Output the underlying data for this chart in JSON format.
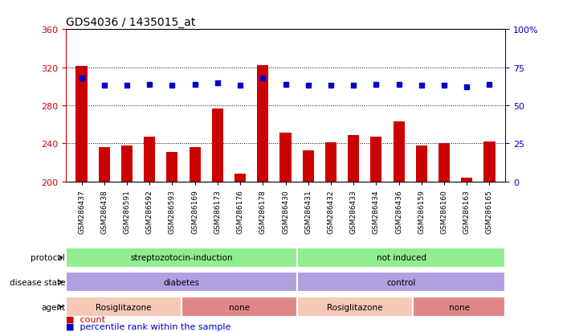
{
  "title": "GDS4036 / 1435015_at",
  "samples": [
    "GSM286437",
    "GSM286438",
    "GSM286591",
    "GSM286592",
    "GSM286593",
    "GSM286169",
    "GSM286173",
    "GSM286176",
    "GSM286178",
    "GSM286430",
    "GSM286431",
    "GSM286432",
    "GSM286433",
    "GSM286434",
    "GSM286436",
    "GSM286159",
    "GSM286160",
    "GSM286163",
    "GSM286165"
  ],
  "counts": [
    321,
    236,
    238,
    247,
    231,
    236,
    277,
    208,
    322,
    251,
    233,
    241,
    249,
    247,
    263,
    238,
    240,
    204,
    242
  ],
  "percentile_ranks": [
    68,
    63,
    63,
    64,
    63,
    64,
    65,
    63,
    68,
    64,
    63,
    63,
    63,
    64,
    64,
    63,
    63,
    62,
    64
  ],
  "bar_color": "#cc0000",
  "dot_color": "#0000cc",
  "ylim_left": [
    200,
    360
  ],
  "ylim_right": [
    0,
    100
  ],
  "yticks_left": [
    200,
    240,
    280,
    320,
    360
  ],
  "yticks_right": [
    0,
    25,
    50,
    75,
    100
  ],
  "grid_lines": [
    240,
    280,
    320
  ],
  "protocol_groups": [
    {
      "label": "streptozotocin-induction",
      "start": 0,
      "end": 10,
      "color": "#90ee90"
    },
    {
      "label": "not induced",
      "start": 10,
      "end": 19,
      "color": "#90ee90"
    }
  ],
  "disease_groups": [
    {
      "label": "diabetes",
      "start": 0,
      "end": 10,
      "color": "#b0a0e0"
    },
    {
      "label": "control",
      "start": 10,
      "end": 19,
      "color": "#b0a0e0"
    }
  ],
  "agent_groups": [
    {
      "label": "Rosiglitazone",
      "start": 0,
      "end": 5,
      "color": "#f5c8b8"
    },
    {
      "label": "none",
      "start": 5,
      "end": 10,
      "color": "#e08888"
    },
    {
      "label": "Rosiglitazone",
      "start": 10,
      "end": 15,
      "color": "#f5c8b8"
    },
    {
      "label": "none",
      "start": 15,
      "end": 19,
      "color": "#e08888"
    }
  ],
  "legend_count_color": "#cc0000",
  "legend_dot_color": "#0000cc",
  "background_color": "#ffffff",
  "plot_bg_color": "#ffffff"
}
